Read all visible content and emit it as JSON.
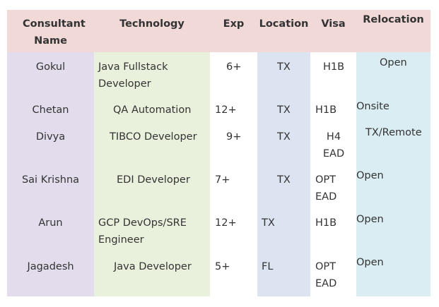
{
  "headers": {
    "consultant": "Consultant Name",
    "technology": "Technology",
    "exp": "Exp",
    "location": "Location",
    "visa": "Visa",
    "relocation": "Relocation"
  },
  "rows": [
    {
      "name": "Gokul",
      "technology": "Java Fullstack Developer",
      "exp": "6+",
      "location": "TX",
      "visa": "H1B",
      "relocation": "Open"
    },
    {
      "name": "Chetan",
      "technology": "QA Automation",
      "exp": "12+",
      "location": "TX",
      "visa": "H1B",
      "relocation": "Onsite"
    },
    {
      "name": "Divya",
      "technology": "TIBCO Developer",
      "exp": "9+",
      "location": "TX",
      "visa": "H4 EAD",
      "relocation": "TX/Remote"
    },
    {
      "name": "Sai Krishna",
      "technology": "EDI Developer",
      "exp": "7+",
      "location": "TX",
      "visa": "OPT EAD",
      "relocation": "Open"
    },
    {
      "name": "Arun",
      "technology": "GCP DevOps/SRE Engineer",
      "exp": "12+",
      "location": "TX",
      "visa": "H1B",
      "relocation": "Open"
    },
    {
      "name": "Jagadesh",
      "technology": "Java Developer",
      "exp": "5+",
      "location": "FL",
      "visa": "OPT EAD",
      "relocation": "Open"
    }
  ],
  "colors": {
    "header_bg": "#f1d9d8",
    "consultant_bg": "#e3dcec",
    "technology_bg": "#e9f1dd",
    "exp_bg": "#ffffff",
    "location_bg": "#dbe4f0",
    "visa_bg": "#ffffff",
    "relocation_bg": "#daedf3",
    "text": "#333333"
  }
}
